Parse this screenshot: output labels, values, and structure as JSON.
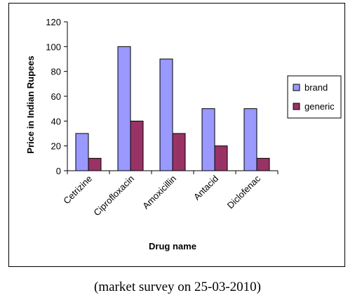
{
  "caption": "(market survey on 25-03-2010)",
  "chart_data": {
    "type": "bar",
    "title": "",
    "xlabel": "Drug name",
    "ylabel": "Price in Indian Rupees",
    "categories": [
      "Cetrizine",
      "Ciprofloxacin",
      "Amoxicillin",
      "Antacid",
      "Diclofenac"
    ],
    "series": [
      {
        "name": "brand",
        "values": [
          30,
          100,
          90,
          50,
          50
        ],
        "color": "#9999ff"
      },
      {
        "name": "generic",
        "values": [
          10,
          40,
          30,
          20,
          10
        ],
        "color": "#993366"
      }
    ],
    "ylim": [
      0,
      120
    ],
    "yticks": [
      0,
      20,
      40,
      60,
      80,
      100,
      120
    ],
    "grid": false,
    "legend": "right"
  }
}
